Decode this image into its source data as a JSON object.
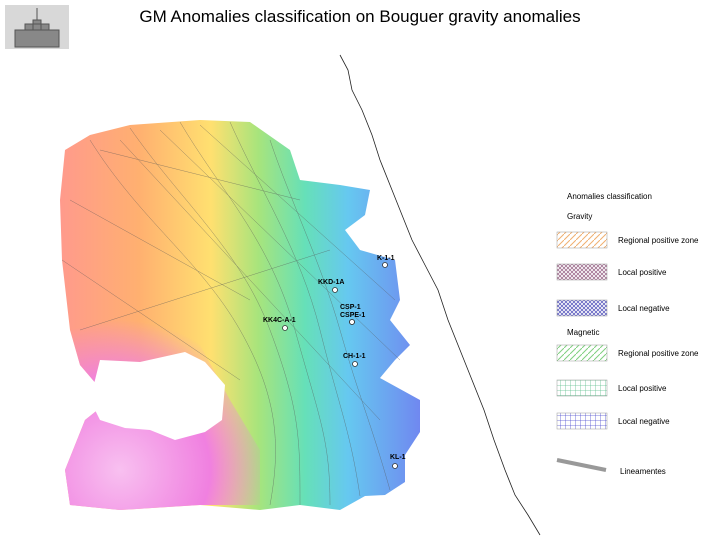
{
  "title": "GM Anomalies classification on Bouguer gravity anomalies",
  "wells": [
    "K-1-1",
    "KKD-1A",
    "CSP-1",
    "CSPE-1",
    "KK4C-A-1",
    "CH-1-1",
    "KL-1"
  ],
  "legend": {
    "title": "Anomalies classification",
    "groups": [
      {
        "name": "Gravity",
        "items": [
          "Regional positive zone",
          "Local positive",
          "Local negative"
        ]
      },
      {
        "name": "Magnetic",
        "items": [
          "Regional positive zone",
          "Local positive",
          "Local negative"
        ]
      }
    ],
    "lineaments": "Lineamentes"
  }
}
